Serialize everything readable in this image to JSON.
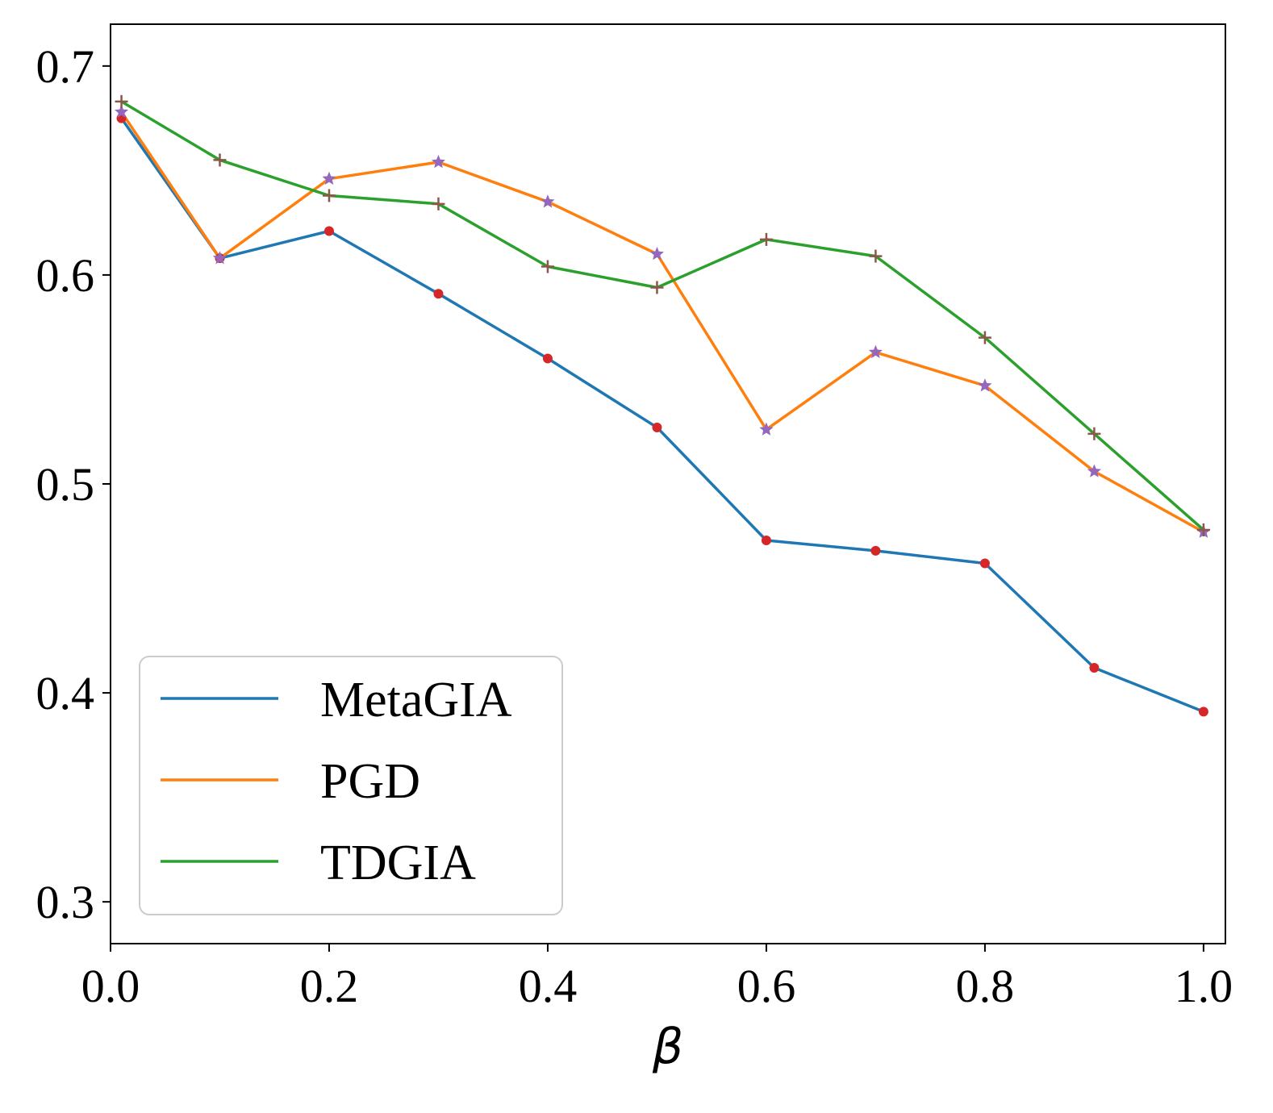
{
  "chart_data": {
    "type": "line",
    "title": "",
    "xlabel": "β",
    "ylabel": "",
    "xlim": [
      0.0,
      1.02
    ],
    "ylim": [
      0.28,
      0.72
    ],
    "xticks": [
      0.0,
      0.2,
      0.4,
      0.6,
      0.8,
      1.0
    ],
    "xtick_labels": [
      "0.0",
      "0.2",
      "0.4",
      "0.6",
      "0.8",
      "1.0"
    ],
    "yticks": [
      0.3,
      0.4,
      0.5,
      0.6,
      0.7
    ],
    "ytick_labels": [
      "0.3",
      "0.4",
      "0.5",
      "0.6",
      "0.7"
    ],
    "grid": false,
    "legend_position": "lower-left",
    "x": [
      0.01,
      0.1,
      0.2,
      0.3,
      0.4,
      0.5,
      0.6,
      0.7,
      0.8,
      0.9,
      1.0
    ],
    "series": [
      {
        "name": "MetaGIA",
        "color": "#1f77b4",
        "marker": "dot",
        "marker_color": "#d62728",
        "values": [
          0.675,
          0.608,
          0.621,
          0.591,
          0.56,
          0.527,
          0.473,
          0.468,
          0.462,
          0.412,
          0.391
        ]
      },
      {
        "name": "PGD",
        "color": "#ff7f0e",
        "marker": "star",
        "marker_color": "#9467bd",
        "values": [
          0.678,
          0.608,
          0.646,
          0.654,
          0.635,
          0.61,
          0.526,
          0.563,
          0.547,
          0.506,
          0.477
        ]
      },
      {
        "name": "TDGIA",
        "color": "#2ca02c",
        "marker": "plus",
        "marker_color": "#8c564b",
        "values": [
          0.683,
          0.655,
          0.638,
          0.634,
          0.604,
          0.594,
          0.617,
          0.609,
          0.57,
          0.524,
          0.478
        ]
      }
    ]
  }
}
